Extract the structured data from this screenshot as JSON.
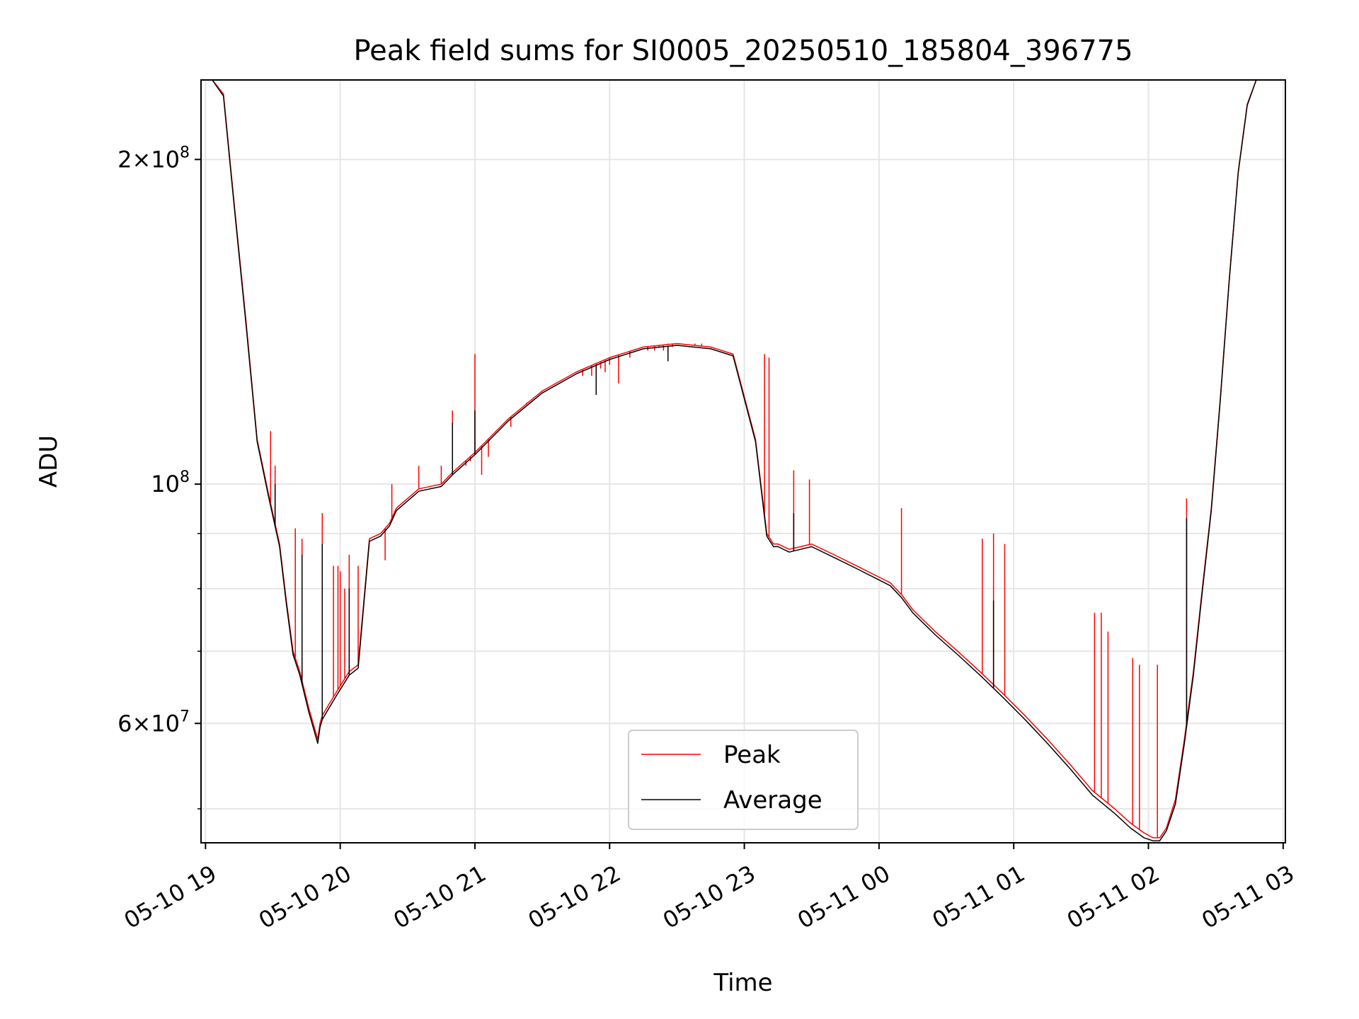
{
  "chart_data": {
    "type": "line",
    "title": "Peak field sums for SI0005_20250510_185804_396775",
    "xlabel": "Time",
    "ylabel": "ADU",
    "yscale": "log",
    "ylim": [
      46500000,
      237000000
    ],
    "xlim": [
      "05-10 18:58",
      "05-11 03:01"
    ],
    "grid": true,
    "legend_position": "lower-center",
    "x_tick_labels": [
      "05-10 19",
      "05-10 20",
      "05-10 21",
      "05-10 22",
      "05-10 23",
      "05-11 00",
      "05-11 01",
      "05-11 02",
      "05-11 03"
    ],
    "y_tick_labels": [
      {
        "value": 200000000,
        "base": "2×10",
        "exp": "8"
      },
      {
        "value": 100000000,
        "base": "10",
        "exp": "8"
      },
      {
        "value": 60000000,
        "base": "6×10",
        "exp": "7"
      }
    ],
    "series_colors": {
      "Peak": "#ff0000",
      "Average": "#000000"
    },
    "series": [
      {
        "name": "Peak",
        "x": [
          "05-10 18:58",
          "05-10 19:03",
          "05-10 19:08",
          "05-10 19:13",
          "05-10 19:18",
          "05-10 19:23",
          "05-10 19:28",
          "05-10 19:33",
          "05-10 19:36",
          "05-10 19:39",
          "05-10 19:42",
          "05-10 19:46",
          "05-10 19:50",
          "05-10 19:51",
          "05-10 19:52",
          "05-10 19:55",
          "05-10 19:58",
          "05-10 20:00",
          "05-10 20:04",
          "05-10 20:08",
          "05-10 20:13",
          "05-10 20:18",
          "05-10 20:20",
          "05-10 20:22",
          "05-10 20:25",
          "05-10 20:35",
          "05-10 20:45",
          "05-10 20:50",
          "05-10 21:00",
          "05-10 21:15",
          "05-10 21:30",
          "05-10 21:45",
          "05-10 22:00",
          "05-10 22:15",
          "05-10 22:30",
          "05-10 22:45",
          "05-10 22:55",
          "05-10 23:05",
          "05-10 23:10",
          "05-10 23:13",
          "05-10 23:15",
          "05-10 23:20",
          "05-10 23:30",
          "05-10 23:40",
          "05-10 23:50",
          "05-11 00:00",
          "05-11 00:05",
          "05-11 00:10",
          "05-11 00:15",
          "05-11 00:25",
          "05-11 00:35",
          "05-11 00:45",
          "05-11 00:55",
          "05-11 01:05",
          "05-11 01:15",
          "05-11 01:25",
          "05-11 01:35",
          "05-11 01:45",
          "05-11 01:52",
          "05-11 01:58",
          "05-11 02:02",
          "05-11 02:05",
          "05-11 02:08",
          "05-11 02:12",
          "05-11 02:16",
          "05-11 02:20",
          "05-11 02:24",
          "05-11 02:28",
          "05-11 02:32",
          "05-11 02:36",
          "05-11 02:40",
          "05-11 02:44",
          "05-11 02:48",
          "05-11 02:52",
          "05-11 02:56",
          "05-11 03:01"
        ],
        "y": [
          237000000,
          237000000,
          230000000,
          180000000,
          142000000,
          110000000,
          98000000,
          88000000,
          78000000,
          70000000,
          67000000,
          62000000,
          58000000,
          60000000,
          61000000,
          62500000,
          64000000,
          65000000,
          67000000,
          68000000,
          89000000,
          90000000,
          91000000,
          92000000,
          95000000,
          99000000,
          100000000,
          102500000,
          107000000,
          115000000,
          122000000,
          127000000,
          131000000,
          134000000,
          135000000,
          134000000,
          132000000,
          110000000,
          90000000,
          88000000,
          88000000,
          87000000,
          88000000,
          86000000,
          84000000,
          82000000,
          81000000,
          79000000,
          76500000,
          73000000,
          70000000,
          67000000,
          64000000,
          61000000,
          58000000,
          55000000,
          52000000,
          50000000,
          48500000,
          47500000,
          47000000,
          47000000,
          48000000,
          51000000,
          58000000,
          67000000,
          80000000,
          95000000,
          120000000,
          155000000,
          195000000,
          225000000,
          237000000,
          237000000,
          237000000,
          237000000
        ],
        "spikes": [
          {
            "x": "05-10 19:29",
            "y": 112000000
          },
          {
            "x": "05-10 19:31",
            "y": 104000000
          },
          {
            "x": "05-10 19:40",
            "y": 91000000
          },
          {
            "x": "05-10 19:43",
            "y": 89000000
          },
          {
            "x": "05-10 19:52",
            "y": 94000000
          },
          {
            "x": "05-10 19:57",
            "y": 84000000
          },
          {
            "x": "05-10 19:59",
            "y": 84000000
          },
          {
            "x": "05-10 20:00",
            "y": 83000000
          },
          {
            "x": "05-10 20:02",
            "y": 80000000
          },
          {
            "x": "05-10 20:04",
            "y": 86000000
          },
          {
            "x": "05-10 20:08",
            "y": 84000000
          },
          {
            "x": "05-10 20:20",
            "y": 85000000
          },
          {
            "x": "05-10 20:23",
            "y": 100000000
          },
          {
            "x": "05-10 20:35",
            "y": 104000000
          },
          {
            "x": "05-10 20:45",
            "y": 104000000
          },
          {
            "x": "05-10 20:50",
            "y": 117000000
          },
          {
            "x": "05-10 20:53",
            "y": 104000000
          },
          {
            "x": "05-10 20:56",
            "y": 104000000
          },
          {
            "x": "05-10 20:58",
            "y": 105000000
          },
          {
            "x": "05-10 21:00",
            "y": 132000000
          },
          {
            "x": "05-10 21:03",
            "y": 102000000
          },
          {
            "x": "05-10 21:06",
            "y": 106000000
          },
          {
            "x": "05-10 21:16",
            "y": 113000000
          },
          {
            "x": "05-10 21:23",
            "y": 119000000
          },
          {
            "x": "05-10 21:48",
            "y": 126000000
          },
          {
            "x": "05-10 21:52",
            "y": 126000000
          },
          {
            "x": "05-10 21:54",
            "y": 127000000
          },
          {
            "x": "05-10 21:56",
            "y": 128000000
          },
          {
            "x": "05-10 21:58",
            "y": 127000000
          },
          {
            "x": "05-10 22:00",
            "y": 129000000
          },
          {
            "x": "05-10 22:04",
            "y": 124000000
          },
          {
            "x": "05-10 22:09",
            "y": 131000000
          },
          {
            "x": "05-10 22:17",
            "y": 133000000
          },
          {
            "x": "05-10 22:20",
            "y": 133000000
          },
          {
            "x": "05-10 22:22",
            "y": 134000000
          },
          {
            "x": "05-10 22:24",
            "y": 133000000
          },
          {
            "x": "05-10 22:26",
            "y": 135000000
          },
          {
            "x": "05-10 22:28",
            "y": 134000000
          },
          {
            "x": "05-10 22:32",
            "y": 135000000
          },
          {
            "x": "05-10 22:38",
            "y": 135000000
          },
          {
            "x": "05-10 22:41",
            "y": 135000000
          },
          {
            "x": "05-10 22:43",
            "y": 134000000
          },
          {
            "x": "05-10 23:09",
            "y": 132000000
          },
          {
            "x": "05-10 23:11",
            "y": 131000000
          },
          {
            "x": "05-10 23:22",
            "y": 103000000
          },
          {
            "x": "05-10 23:29",
            "y": 101000000
          },
          {
            "x": "05-11 00:10",
            "y": 95000000
          },
          {
            "x": "05-11 00:46",
            "y": 89000000
          },
          {
            "x": "05-11 00:51",
            "y": 90000000
          },
          {
            "x": "05-11 00:56",
            "y": 88000000
          },
          {
            "x": "05-11 01:36",
            "y": 76000000
          },
          {
            "x": "05-11 01:39",
            "y": 76000000
          },
          {
            "x": "05-11 01:42",
            "y": 73000000
          },
          {
            "x": "05-11 01:53",
            "y": 69000000
          },
          {
            "x": "05-11 01:56",
            "y": 68000000
          },
          {
            "x": "05-11 02:04",
            "y": 68000000
          },
          {
            "x": "05-11 02:17",
            "y": 97000000
          }
        ]
      },
      {
        "name": "Average",
        "x": [
          "05-10 18:58",
          "05-10 19:03",
          "05-10 19:08",
          "05-10 19:13",
          "05-10 19:18",
          "05-10 19:23",
          "05-10 19:28",
          "05-10 19:33",
          "05-10 19:36",
          "05-10 19:39",
          "05-10 19:42",
          "05-10 19:46",
          "05-10 19:50",
          "05-10 19:51",
          "05-10 19:52",
          "05-10 19:55",
          "05-10 19:58",
          "05-10 20:00",
          "05-10 20:04",
          "05-10 20:08",
          "05-10 20:13",
          "05-10 20:18",
          "05-10 20:20",
          "05-10 20:22",
          "05-10 20:25",
          "05-10 20:35",
          "05-10 20:45",
          "05-10 20:50",
          "05-10 21:00",
          "05-10 21:15",
          "05-10 21:30",
          "05-10 21:45",
          "05-10 22:00",
          "05-10 22:15",
          "05-10 22:30",
          "05-10 22:45",
          "05-10 22:55",
          "05-10 23:05",
          "05-10 23:10",
          "05-10 23:13",
          "05-10 23:15",
          "05-10 23:20",
          "05-10 23:30",
          "05-10 23:40",
          "05-10 23:50",
          "05-11 00:00",
          "05-11 00:05",
          "05-11 00:10",
          "05-11 00:15",
          "05-11 00:25",
          "05-11 00:35",
          "05-11 00:45",
          "05-11 00:55",
          "05-11 01:05",
          "05-11 01:15",
          "05-11 01:25",
          "05-11 01:35",
          "05-11 01:45",
          "05-11 01:52",
          "05-11 01:58",
          "05-11 02:02",
          "05-11 02:05",
          "05-11 02:08",
          "05-11 02:12",
          "05-11 02:16",
          "05-11 02:20",
          "05-11 02:24",
          "05-11 02:28",
          "05-11 02:32",
          "05-11 02:36",
          "05-11 02:40",
          "05-11 02:44",
          "05-11 02:48",
          "05-11 02:52",
          "05-11 02:56",
          "05-11 03:01"
        ],
        "y": [
          237000000,
          237000000,
          229000000,
          179000000,
          141000000,
          109500000,
          97500000,
          87500000,
          77500000,
          69500000,
          66500000,
          61500000,
          57500000,
          59500000,
          60500000,
          62000000,
          63500000,
          64500000,
          66500000,
          67500000,
          88500000,
          89500000,
          90500000,
          91500000,
          94500000,
          98500000,
          99500000,
          102000000,
          106500000,
          114500000,
          121500000,
          126500000,
          130500000,
          133500000,
          134500000,
          133500000,
          131500000,
          109500000,
          89500000,
          87500000,
          87500000,
          86500000,
          87500000,
          85500000,
          83500000,
          81500000,
          80500000,
          78500000,
          76000000,
          72500000,
          69500000,
          66500000,
          63500000,
          60500000,
          57500000,
          54500000,
          51500000,
          49500000,
          48000000,
          47000000,
          46700000,
          46700000,
          47700000,
          50500000,
          57500000,
          66500000,
          79500000,
          94500000,
          119500000,
          154500000,
          194500000,
          224500000,
          237000000,
          237000000,
          237000000,
          237000000
        ],
        "spikes": [
          {
            "x": "05-10 19:31",
            "y": 100000000
          },
          {
            "x": "05-10 19:43",
            "y": 86000000
          },
          {
            "x": "05-10 19:52",
            "y": 88000000
          },
          {
            "x": "05-10 20:04",
            "y": 80000000
          },
          {
            "x": "05-10 20:50",
            "y": 114000000
          },
          {
            "x": "05-10 21:00",
            "y": 117000000
          },
          {
            "x": "05-10 21:54",
            "y": 121000000
          },
          {
            "x": "05-10 22:26",
            "y": 130000000
          },
          {
            "x": "05-10 23:22",
            "y": 94000000
          },
          {
            "x": "05-11 00:51",
            "y": 78000000
          },
          {
            "x": "05-11 02:17",
            "y": 93000000
          }
        ]
      }
    ]
  }
}
